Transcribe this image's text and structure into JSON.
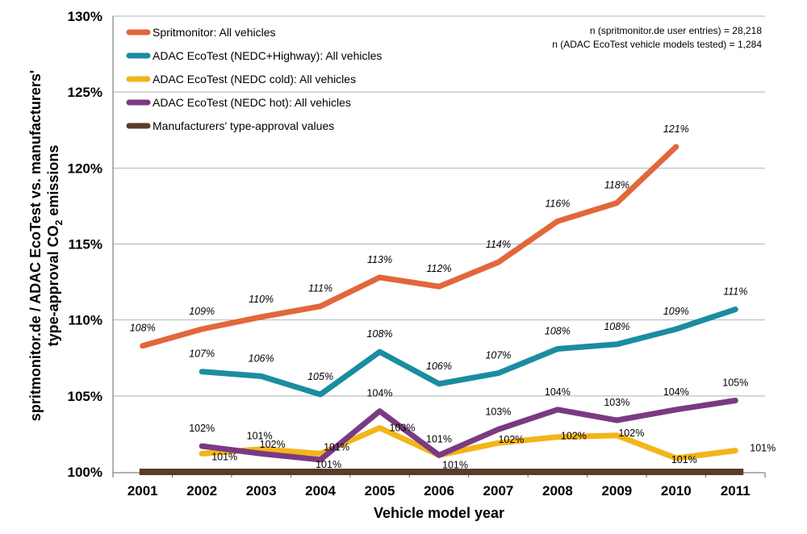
{
  "chart_data": {
    "type": "line",
    "xlabel": "Vehicle model year",
    "ylabel_line1": "spritmonitor.de / ADAC EcoTest vs. manufacturers'",
    "ylabel_line2_prefix": "type-approval CO",
    "ylabel_line2_sub": "2",
    "ylabel_line2_suffix": " emissions",
    "ylim": [
      100,
      130
    ],
    "yticks": [
      100,
      105,
      110,
      115,
      120,
      125,
      130
    ],
    "ytick_labels": [
      "100%",
      "105%",
      "110%",
      "115%",
      "120%",
      "125%",
      "130%"
    ],
    "categories": [
      "2001",
      "2002",
      "2003",
      "2004",
      "2005",
      "2006",
      "2007",
      "2008",
      "2009",
      "2010",
      "2011"
    ],
    "grid": "horizontal",
    "legend_position": "top-left",
    "notes": [
      "n (spritmonitor.de user entries) = 28,218",
      "n (ADAC EcoTest vehicle models tested) = 1,284"
    ],
    "series": [
      {
        "name": "Spritmonitor: All vehicles",
        "color": "#e2673b",
        "italic_labels": true,
        "values": [
          108.3,
          109.4,
          110.2,
          110.9,
          112.8,
          112.2,
          113.8,
          116.5,
          117.7,
          121.4,
          null
        ],
        "labels": [
          "108%",
          "109%",
          "110%",
          "111%",
          "113%",
          "112%",
          "114%",
          "116%",
          "118%",
          "121%",
          null
        ]
      },
      {
        "name": "ADAC EcoTest (NEDC+Highway): All vehicles",
        "color": "#1a8da0",
        "italic_labels": true,
        "values": [
          null,
          106.6,
          106.3,
          105.1,
          107.9,
          105.8,
          106.5,
          108.1,
          108.4,
          109.4,
          110.7
        ],
        "labels": [
          null,
          "107%",
          "106%",
          "105%",
          "108%",
          "106%",
          "107%",
          "108%",
          "108%",
          "109%",
          "111%"
        ]
      },
      {
        "name": "ADAC EcoTest (NEDC cold): All vehicles",
        "color": "#f2b51a",
        "italic_labels": false,
        "values": [
          null,
          101.2,
          101.5,
          101.2,
          102.9,
          101.1,
          101.9,
          102.3,
          102.4,
          100.9,
          101.4
        ],
        "labels": [
          null,
          "101%",
          "102%",
          "101%",
          "103%",
          "101%",
          "102%",
          "102%",
          "102%",
          "101%",
          "101%"
        ]
      },
      {
        "name": "ADAC EcoTest (NEDC hot): All vehicles",
        "color": "#7a3a82",
        "italic_labels": false,
        "values": [
          null,
          101.7,
          101.2,
          100.8,
          104.0,
          101.1,
          102.8,
          104.1,
          103.4,
          104.1,
          104.7
        ],
        "labels": [
          null,
          "102%",
          "101%",
          "101%",
          "104%",
          "101%",
          "103%",
          "104%",
          "103%",
          "104%",
          "105%"
        ]
      },
      {
        "name": "Manufacturers' type-approval values",
        "color": "#5b3a2a",
        "italic_labels": false,
        "values": [
          100,
          100,
          100,
          100,
          100,
          100,
          100,
          100,
          100,
          100,
          100
        ],
        "labels": [
          null,
          null,
          null,
          null,
          null,
          null,
          null,
          null,
          null,
          null,
          null
        ]
      }
    ]
  }
}
